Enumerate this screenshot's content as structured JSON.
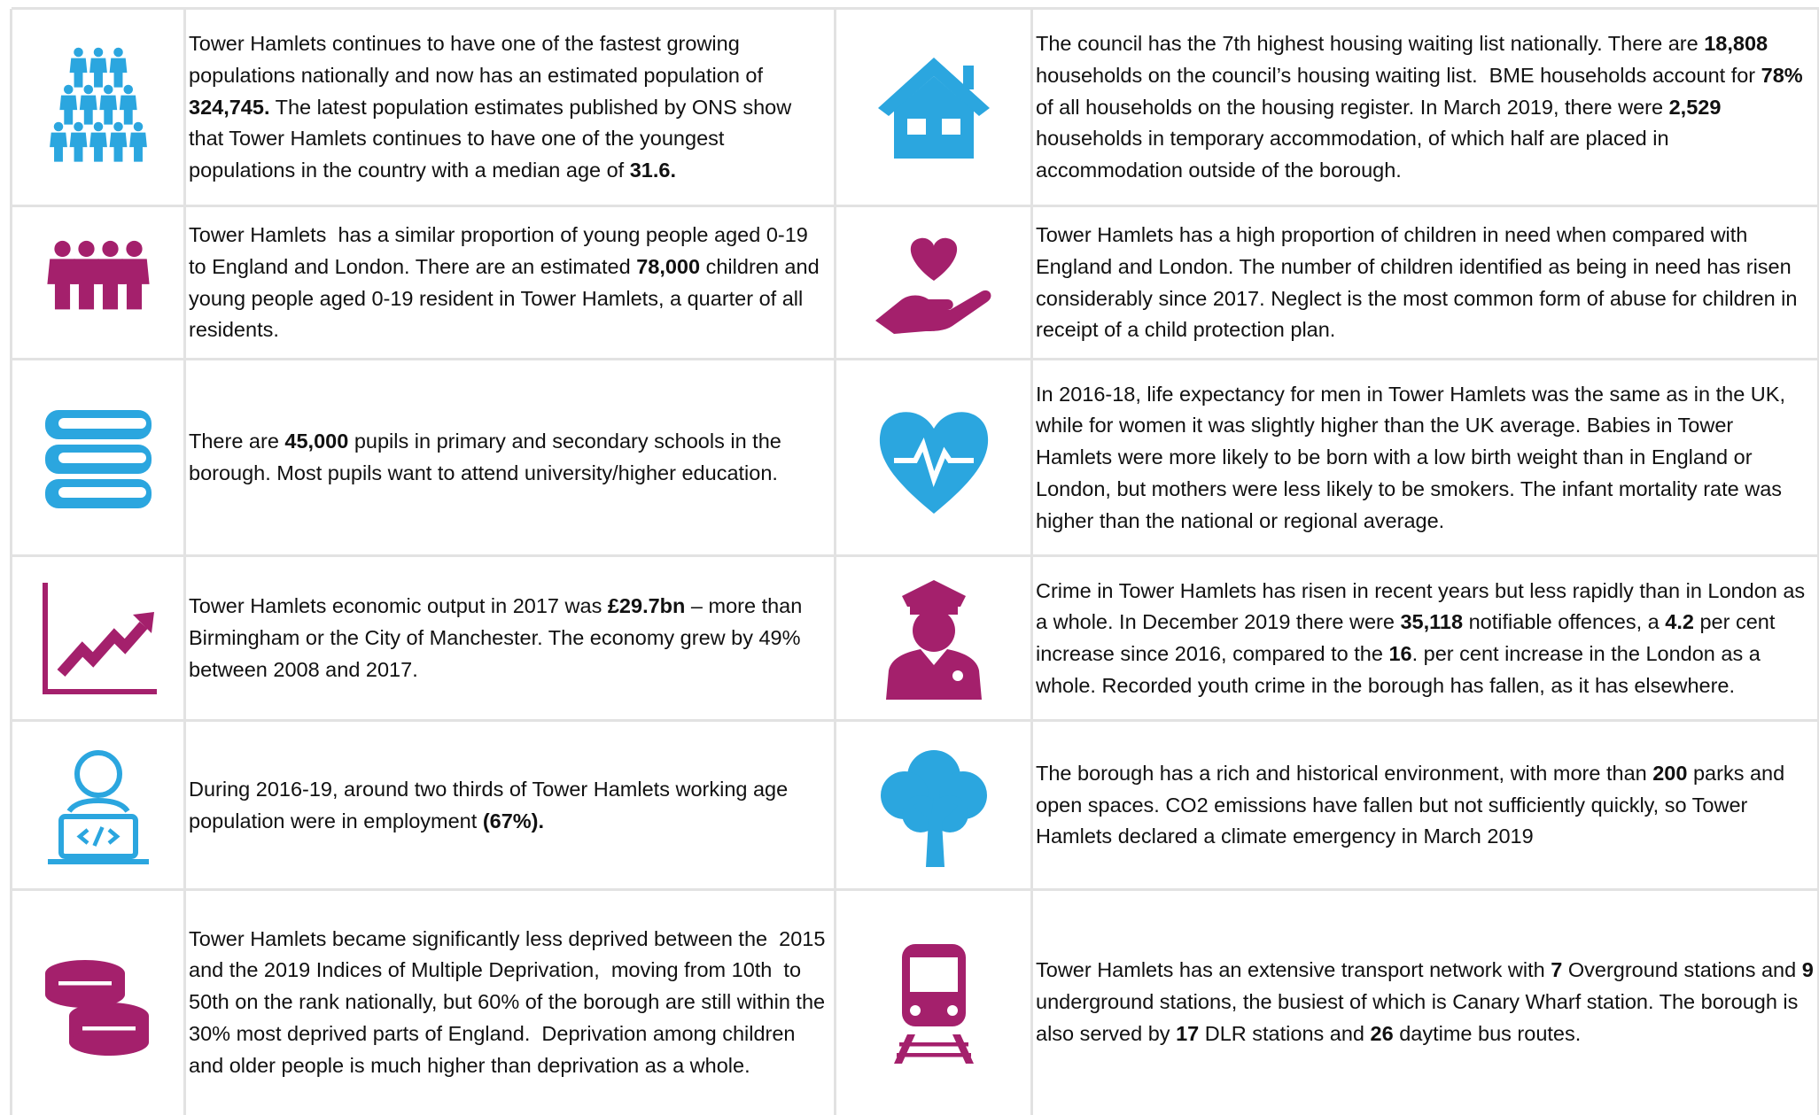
{
  "rows": [
    {
      "left": [
        {
          "text": "Tower Hamlets continues to have one of the fastest growing populations nationally and now has an estimated population of "
        },
        {
          "text": "324,745.",
          "bold": true
        },
        {
          "text": " The latest population estimates published by ONS show that Tower Hamlets continues to have one of the youngest populations in the country with a median age of "
        },
        {
          "text": "31.6.",
          "bold": true
        }
      ],
      "right": [
        {
          "text": "The council has the 7th highest housing waiting list nationally. There are "
        },
        {
          "text": "18,808",
          "bold": true
        },
        {
          "text": " households on the council’s housing waiting list.  BME households account for "
        },
        {
          "text": "78%",
          "bold": true
        },
        {
          "text": " of all households on the housing register. In March 2019, there were "
        },
        {
          "text": "2,529",
          "bold": true
        },
        {
          "text": " households in temporary accommodation, of which half are placed in accommodation outside of the borough."
        }
      ]
    },
    {
      "left": [
        {
          "text": "Tower Hamlets  has a similar proportion of young people aged 0-19 to England and London. There are an estimated "
        },
        {
          "text": "78,000",
          "bold": true
        },
        {
          "text": " children and young people aged 0-19 resident in Tower Hamlets, a quarter of all residents."
        }
      ],
      "right": [
        {
          "text": "Tower Hamlets has a high proportion of children in need when compared with England and London. The number of children identified as being in need has risen considerably since 2017. Neglect is the most common form of abuse for children in receipt of a child protection plan."
        }
      ]
    },
    {
      "left": [
        {
          "text": "There are "
        },
        {
          "text": "45,000",
          "bold": true
        },
        {
          "text": " pupils in primary and secondary schools in the borough. Most pupils want to attend university/higher education."
        }
      ],
      "right": [
        {
          "text": "In 2016-18, life expectancy for men in Tower Hamlets was the same as in the UK, while for women it was slightly higher than the UK average. Babies in Tower Hamlets were more likely to be born with a low birth weight than in England or London, but mothers were less likely to be smokers. The infant mortality rate was higher than the national or regional average."
        }
      ]
    },
    {
      "left": [
        {
          "text": "Tower Hamlets economic output in 2017 was "
        },
        {
          "text": "£29.7bn",
          "bold": true
        },
        {
          "text": " – more than Birmingham or the City of Manchester. The economy grew by 49% between 2008 and 2017."
        }
      ],
      "right": [
        {
          "text": "Crime in Tower Hamlets has risen in recent years but less rapidly than in London as a whole. In December 2019 there were "
        },
        {
          "text": "35,118",
          "bold": true
        },
        {
          "text": " notifiable offences, a "
        },
        {
          "text": "4.2",
          "bold": true
        },
        {
          "text": " per cent increase since 2016, compared to the "
        },
        {
          "text": "16",
          "bold": true
        },
        {
          "text": ". per cent increase in the London as a whole. Recorded youth crime in the borough has fallen, as it has elsewhere."
        }
      ]
    },
    {
      "left": [
        {
          "text": "During 2016-19, around two thirds of Tower Hamlets working age population were in employment "
        },
        {
          "text": "(67%).",
          "bold": true
        }
      ],
      "right": [
        {
          "text": "The borough has a rich and historical environment, with more than "
        },
        {
          "text": "200",
          "bold": true
        },
        {
          "text": " parks and open spaces. CO2 emissions have fallen but not sufficiently quickly, so Tower Hamlets declared a climate emergency in March 2019"
        }
      ]
    },
    {
      "left": [
        {
          "text": "Tower Hamlets became significantly less deprived between the  2015 and the 2019 Indices of Multiple Deprivation,  moving from 10th  to 50th on the rank nationally, but 60% of the borough are still within the 30% most deprived parts of England.  Deprivation among children and older people is much higher than deprivation as a whole."
        }
      ],
      "right": [
        {
          "text": "Tower Hamlets has an extensive transport network with "
        },
        {
          "text": "7",
          "bold": true
        },
        {
          "text": " Overground stations and "
        },
        {
          "text": "9",
          "bold": true
        },
        {
          "text": " underground stations, the busiest of which is Canary Wharf station. The borough is also served by "
        },
        {
          "text": "17",
          "bold": true
        },
        {
          "text": " DLR stations and "
        },
        {
          "text": "26",
          "bold": true
        },
        {
          "text": " daytime bus routes."
        }
      ]
    }
  ]
}
